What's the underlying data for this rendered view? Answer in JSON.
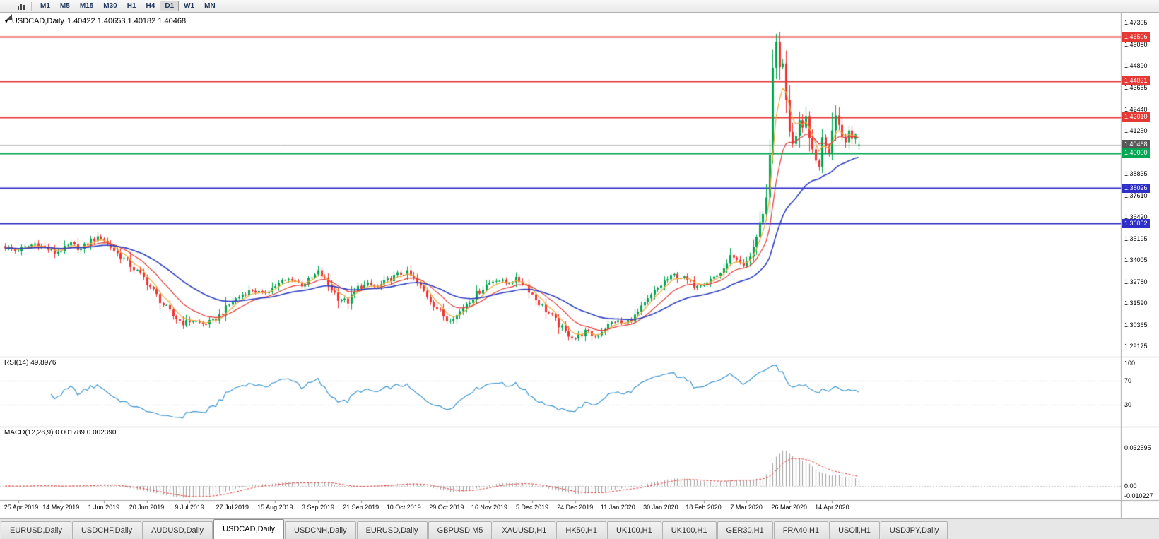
{
  "toolbar": {
    "timeframes": [
      "M1",
      "M5",
      "M15",
      "M30",
      "H1",
      "H4",
      "D1",
      "W1",
      "MN"
    ],
    "active_timeframe": "D1"
  },
  "chart": {
    "dropdown_icon": "▼",
    "title": "USDCAD,Daily",
    "ohlc_text": "1.40422 1.40653 1.40182 1.40468"
  },
  "price_axis": {
    "ticks": [
      "1.47305",
      "1.46080",
      "1.44890",
      "1.43665",
      "1.42440",
      "1.41250",
      "1.38835",
      "1.37610",
      "1.36420",
      "1.35195",
      "1.34005",
      "1.32780",
      "1.31590",
      "1.30365",
      "1.29175"
    ],
    "tags": [
      {
        "value": "1.46506",
        "color": "#e53935",
        "type": "resistance-line"
      },
      {
        "value": "1.44021",
        "color": "#e53935",
        "type": "resistance-line"
      },
      {
        "value": "1.42010",
        "color": "#e53935",
        "type": "resistance-line"
      },
      {
        "value": "1.40468",
        "color": "#575757",
        "type": "current-price"
      },
      {
        "value": "1.40000",
        "color": "#00a651",
        "type": "support-line"
      },
      {
        "value": "1.38026",
        "color": "#2e2ec9",
        "type": "support-line"
      },
      {
        "value": "1.36052",
        "color": "#2e2ec9",
        "type": "support-line"
      }
    ]
  },
  "x_axis": {
    "dates": [
      "25 Apr 2019",
      "14 May 2019",
      "1 Jun 2019",
      "20 Jun 2019",
      "9 Jul 2019",
      "27 Jul 2019",
      "15 Aug 2019",
      "3 Sep 2019",
      "21 Sep 2019",
      "10 Oct 2019",
      "29 Oct 2019",
      "16 Nov 2019",
      "5 Dec 2019",
      "24 Dec 2019",
      "11 Jan 2020",
      "30 Jan 2020",
      "18 Feb 2020",
      "7 Mar 2020",
      "26 Mar 2020",
      "14 Apr 2020"
    ]
  },
  "rsi_panel": {
    "label": "RSI(14) 49.8976",
    "axis_labels": [
      "100",
      "70",
      "30"
    ]
  },
  "macd_panel": {
    "label": "MACD(12,26,9) 0.001789 0.002390",
    "axis_labels": [
      "0.032595",
      "0.00",
      "-0.010227"
    ]
  },
  "tabs": [
    {
      "label": "EURUSD,Daily",
      "active": false
    },
    {
      "label": "USDCHF,Daily",
      "active": false
    },
    {
      "label": "AUDUSD,Daily",
      "active": false
    },
    {
      "label": "USDCAD,Daily",
      "active": true
    },
    {
      "label": "USDCNH,Daily",
      "active": false
    },
    {
      "label": "EURUSD,Daily",
      "active": false
    },
    {
      "label": "GBPUSD,M5",
      "active": false
    },
    {
      "label": "XAUUSD,H1",
      "active": false
    },
    {
      "label": "HK50,H1",
      "active": false
    },
    {
      "label": "UK100,H1",
      "active": false
    },
    {
      "label": "UK100,H1",
      "active": false
    },
    {
      "label": "GER30,H1",
      "active": false
    },
    {
      "label": "FRA40,H1",
      "active": false
    },
    {
      "label": "USOil,H1",
      "active": false
    },
    {
      "label": "USDJPY,Daily",
      "active": false
    }
  ],
  "chart_data": {
    "type": "candlestick",
    "symbol": "USDCAD",
    "timeframe": "Daily",
    "last_candle": {
      "open": 1.40422,
      "high": 1.40653,
      "low": 1.40182,
      "close": 1.40468
    },
    "price_axis_range": [
      1.29175,
      1.47305
    ],
    "bars_visible": 260,
    "date_tick_first_bar": 4,
    "date_tick_step_bars": 13,
    "hlines": [
      {
        "price": 1.46506,
        "color": "#e53935",
        "width": 2
      },
      {
        "price": 1.44021,
        "color": "#e53935",
        "width": 2
      },
      {
        "price": 1.4201,
        "color": "#e53935",
        "width": 2
      },
      {
        "price": 1.40468,
        "color": "#bbbbbb",
        "width": 1
      },
      {
        "price": 1.4,
        "color": "#00a651",
        "width": 2
      },
      {
        "price": 1.38026,
        "color": "#2e2ec9",
        "width": 2
      },
      {
        "price": 1.36052,
        "color": "#2e2ec9",
        "width": 2
      }
    ],
    "close_anchors": [
      [
        0,
        1.3475
      ],
      [
        3,
        1.3452
      ],
      [
        6,
        1.347
      ],
      [
        9,
        1.3492
      ],
      [
        12,
        1.347
      ],
      [
        15,
        1.344
      ],
      [
        17,
        1.3452
      ],
      [
        20,
        1.3488
      ],
      [
        23,
        1.346
      ],
      [
        26,
        1.351
      ],
      [
        29,
        1.3528
      ],
      [
        31,
        1.3488
      ],
      [
        33,
        1.3452
      ],
      [
        36,
        1.3405
      ],
      [
        39,
        1.3352
      ],
      [
        42,
        1.33
      ],
      [
        45,
        1.3225
      ],
      [
        48,
        1.315
      ],
      [
        51,
        1.3085
      ],
      [
        54,
        1.3048
      ],
      [
        57,
        1.3062
      ],
      [
        60,
        1.304
      ],
      [
        63,
        1.3058
      ],
      [
        66,
        1.3105
      ],
      [
        69,
        1.317
      ],
      [
        72,
        1.3208
      ],
      [
        75,
        1.3232
      ],
      [
        78,
        1.321
      ],
      [
        81,
        1.3245
      ],
      [
        84,
        1.328
      ],
      [
        87,
        1.3295
      ],
      [
        90,
        1.3262
      ],
      [
        93,
        1.3298
      ],
      [
        95,
        1.334
      ],
      [
        98,
        1.3262
      ],
      [
        101,
        1.319
      ],
      [
        104,
        1.3165
      ],
      [
        107,
        1.3245
      ],
      [
        110,
        1.3262
      ],
      [
        113,
        1.3248
      ],
      [
        116,
        1.3285
      ],
      [
        119,
        1.3318
      ],
      [
        122,
        1.333
      ],
      [
        125,
        1.327
      ],
      [
        128,
        1.32
      ],
      [
        131,
        1.313
      ],
      [
        134,
        1.3065
      ],
      [
        137,
        1.309
      ],
      [
        140,
        1.3158
      ],
      [
        143,
        1.321
      ],
      [
        146,
        1.3262
      ],
      [
        149,
        1.3295
      ],
      [
        152,
        1.327
      ],
      [
        155,
        1.3292
      ],
      [
        158,
        1.3262
      ],
      [
        161,
        1.318
      ],
      [
        164,
        1.312
      ],
      [
        167,
        1.306
      ],
      [
        170,
        1.2992
      ],
      [
        173,
        1.2962
      ],
      [
        176,
        1.2998
      ],
      [
        179,
        1.2972
      ],
      [
        182,
        1.3022
      ],
      [
        185,
        1.306
      ],
      [
        188,
        1.3042
      ],
      [
        191,
        1.3085
      ],
      [
        194,
        1.315
      ],
      [
        197,
        1.3222
      ],
      [
        200,
        1.328
      ],
      [
        203,
        1.3315
      ],
      [
        206,
        1.3298
      ],
      [
        209,
        1.326
      ],
      [
        212,
        1.327
      ],
      [
        215,
        1.3305
      ],
      [
        218,
        1.334
      ],
      [
        220,
        1.3425
      ],
      [
        222,
        1.3398
      ],
      [
        224,
        1.3365
      ],
      [
        226,
        1.342
      ],
      [
        228,
        1.353
      ],
      [
        229,
        1.361
      ],
      [
        230,
        1.366
      ],
      [
        231,
        1.375
      ],
      [
        232,
        1.399
      ],
      [
        233,
        1.448
      ],
      [
        234,
        1.462
      ],
      [
        235,
        1.448
      ],
      [
        236,
        1.45
      ],
      [
        237,
        1.43
      ],
      [
        238,
        1.412
      ],
      [
        239,
        1.405
      ],
      [
        240,
        1.409
      ],
      [
        241,
        1.418
      ],
      [
        242,
        1.414
      ],
      [
        243,
        1.421
      ],
      [
        244,
        1.408
      ],
      [
        245,
        1.402
      ],
      [
        246,
        1.396
      ],
      [
        247,
        1.392
      ],
      [
        248,
        1.409
      ],
      [
        249,
        1.404
      ],
      [
        250,
        1.4
      ],
      [
        251,
        1.413
      ],
      [
        252,
        1.421
      ],
      [
        253,
        1.416
      ],
      [
        254,
        1.409
      ],
      [
        255,
        1.406
      ],
      [
        256,
        1.413
      ],
      [
        257,
        1.408
      ],
      [
        258,
        1.41
      ],
      [
        259,
        1.40468
      ]
    ],
    "high_overrides": [
      [
        234,
        1.4668
      ]
    ],
    "moving_averages": [
      {
        "name": "fast",
        "ema": 5,
        "color": "#f2a93b"
      },
      {
        "name": "medium",
        "ema": 13,
        "color": "#e53935"
      },
      {
        "name": "slow",
        "ema": 34,
        "color": "#2b3fc0"
      }
    ],
    "indicators": {
      "rsi": {
        "period": 14,
        "current": 49.8976,
        "levels": [
          30,
          70
        ],
        "axis_max": 100,
        "color": "#3d96d2"
      },
      "macd": {
        "fast": 12,
        "slow": 26,
        "signal": 9,
        "values": [
          0.001789,
          0.00239
        ],
        "axis_max": 0.032595,
        "axis_min": -0.010227,
        "hist_color": "#a0a0a0",
        "signal_color": "#e53935"
      }
    },
    "candle_colors": {
      "bull": "#00a651",
      "bear": "#ef3333"
    }
  }
}
